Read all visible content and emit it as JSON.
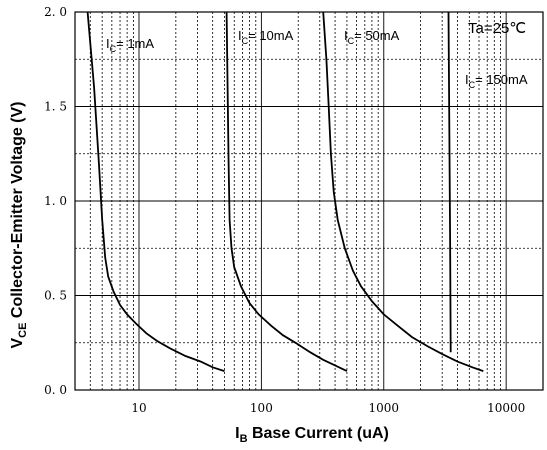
{
  "chart_data": {
    "type": "line",
    "x_scale": "log",
    "y_scale": "linear",
    "xlim": [
      3,
      20000
    ],
    "ylim": [
      0,
      2.0
    ],
    "grid": true,
    "x_ticks": [
      10,
      100,
      1000,
      10000
    ],
    "x_tick_labels": [
      "10",
      "100",
      "1000",
      "10000"
    ],
    "y_ticks": [
      0,
      0.5,
      1.0,
      1.5,
      2.0
    ],
    "y_tick_labels": [
      "0. 0",
      "0. 5",
      "1. 0",
      "1. 5",
      "2. 0"
    ],
    "xlabel": {
      "main": "I",
      "sub": "B",
      "rest": " Base Current (uA)"
    },
    "ylabel": {
      "main": "V",
      "sub": "CE",
      "rest": " Collector-Emitter Voltage (V)"
    },
    "annotations": [
      {
        "id": "ta",
        "text": "Ta=25℃"
      },
      {
        "id": "ic1",
        "main": "I",
        "sub": "C",
        "rest": "= 1mA"
      },
      {
        "id": "ic10",
        "main": "I",
        "sub": "C",
        "rest": "= 10mA"
      },
      {
        "id": "ic50",
        "main": "I",
        "sub": "C",
        "rest": "= 50mA"
      },
      {
        "id": "ic150",
        "main": "I",
        "sub": "C",
        "rest": "= 150mA"
      }
    ],
    "series": [
      {
        "x": [
          3.8,
          4.3,
          4.7,
          5.0,
          5.3,
          5.6,
          6.2,
          7.0,
          8.0,
          9.5,
          11.5,
          14,
          18,
          24,
          32,
          40,
          50
        ],
        "y": [
          2.0,
          1.6,
          1.2,
          0.9,
          0.7,
          0.6,
          0.52,
          0.45,
          0.4,
          0.35,
          0.3,
          0.26,
          0.22,
          0.18,
          0.15,
          0.12,
          0.1
        ]
      },
      {
        "x": [
          52,
          53,
          54,
          55,
          57,
          60,
          68,
          80,
          95,
          120,
          150,
          190,
          250,
          320,
          400,
          500
        ],
        "y": [
          2.0,
          1.6,
          1.2,
          0.9,
          0.75,
          0.65,
          0.55,
          0.46,
          0.4,
          0.34,
          0.29,
          0.25,
          0.2,
          0.16,
          0.13,
          0.1
        ]
      },
      {
        "x": [
          320,
          340,
          355,
          370,
          390,
          420,
          480,
          560,
          650,
          800,
          1000,
          1300,
          1700,
          2300,
          3000,
          4000,
          5300,
          6500
        ],
        "y": [
          2.0,
          1.75,
          1.5,
          1.25,
          1.05,
          0.9,
          0.75,
          0.63,
          0.55,
          0.47,
          0.4,
          0.34,
          0.28,
          0.23,
          0.19,
          0.15,
          0.12,
          0.1
        ]
      },
      {
        "x": [
          3380,
          3430,
          3480,
          3520
        ],
        "y": [
          2.0,
          1.4,
          0.8,
          0.2
        ]
      }
    ]
  }
}
